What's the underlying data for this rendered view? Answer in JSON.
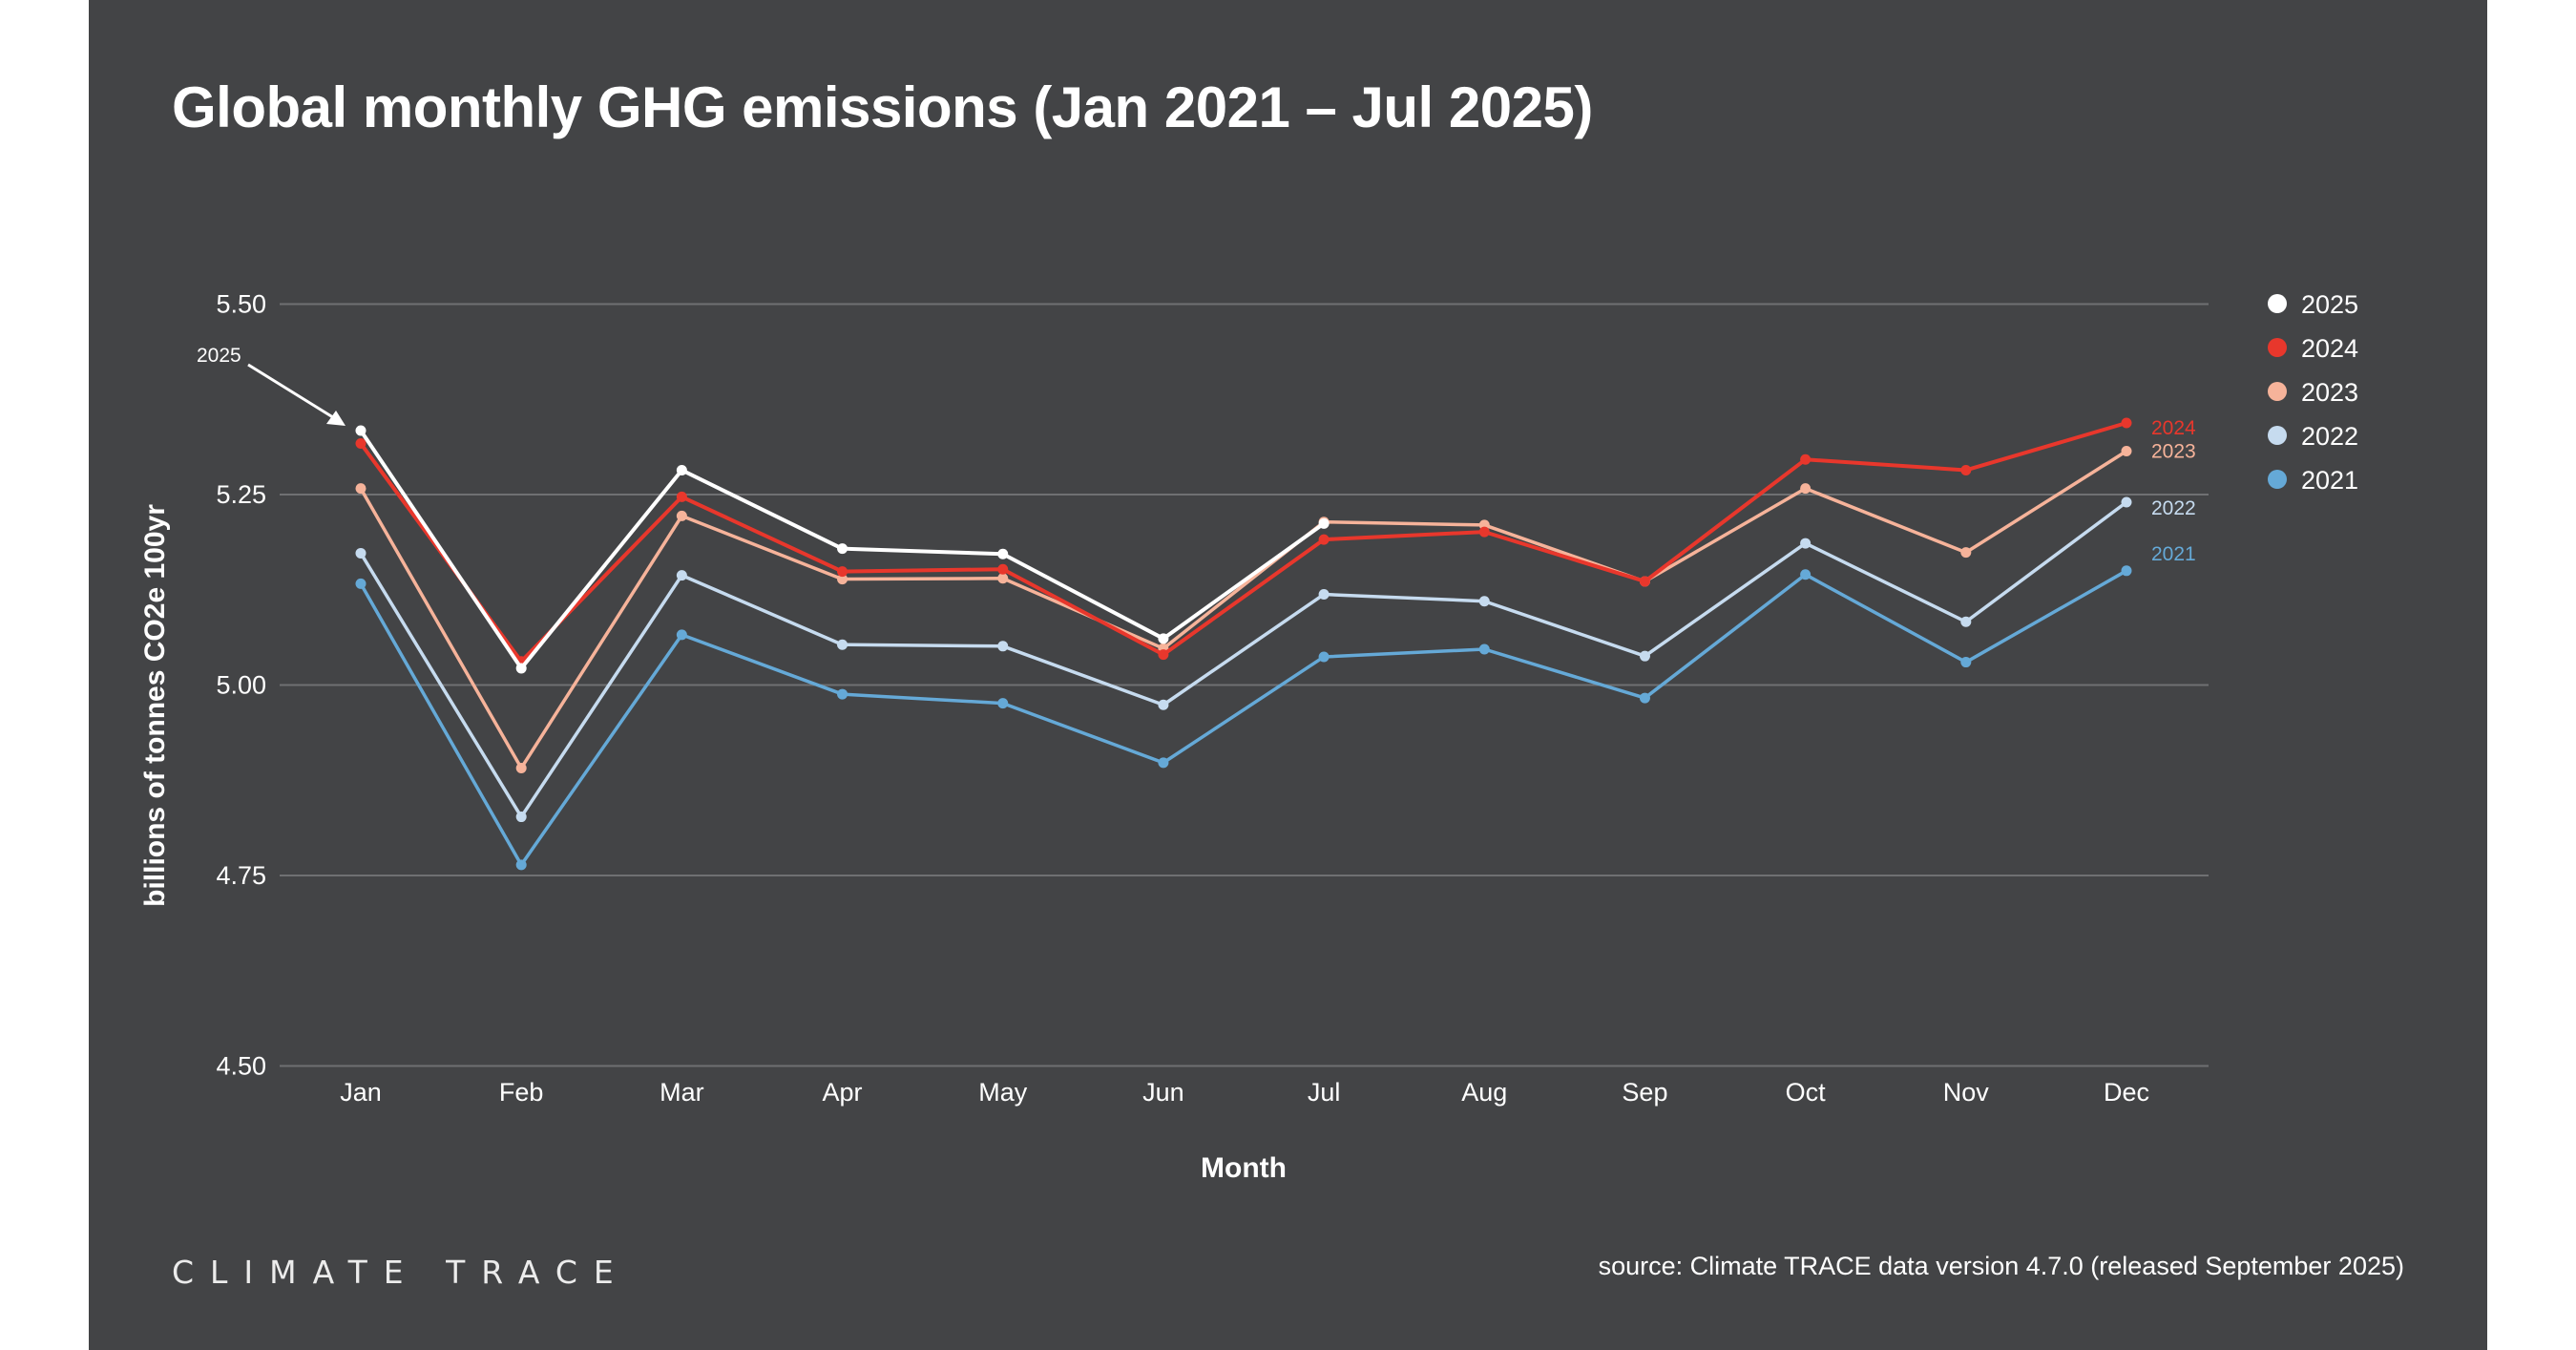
{
  "colors": {
    "background": "#434446",
    "gridline": "#6f7072",
    "text": "#ffffff"
  },
  "footer": {
    "logo": "CLIMATE TRACE",
    "source": "source: Climate TRACE data version 4.7.0 (released September 2025)"
  },
  "chart_data": {
    "type": "line",
    "title": "Global monthly GHG emissions (Jan 2021 – Jul 2025)",
    "xlabel": "Month",
    "ylabel": "billions of tonnes CO2e 100yr",
    "categories": [
      "Jan",
      "Feb",
      "Mar",
      "Apr",
      "May",
      "Jun",
      "Jul",
      "Aug",
      "Sep",
      "Oct",
      "Nov",
      "Dec"
    ],
    "ylim": [
      4.5,
      5.5
    ],
    "yticks": [
      4.5,
      4.75,
      5.0,
      5.25,
      5.5
    ],
    "ytick_labels": [
      "4.50",
      "4.75",
      "5.00",
      "5.25",
      "5.50"
    ],
    "grid": true,
    "legend_position": "right",
    "annotation": {
      "text": "2025",
      "target_series": "2025",
      "target_category": "Jan"
    },
    "series": [
      {
        "name": "2021",
        "color": "#65a9d7",
        "end_label": "2021",
        "values": [
          5.133,
          4.764,
          5.066,
          4.988,
          4.976,
          4.898,
          5.037,
          5.047,
          4.983,
          5.145,
          5.03,
          5.15
        ]
      },
      {
        "name": "2022",
        "color": "#c6dbef",
        "end_label": "2022",
        "values": [
          5.173,
          4.827,
          5.144,
          5.053,
          5.051,
          4.974,
          5.119,
          5.11,
          5.038,
          5.186,
          5.083,
          5.24
        ]
      },
      {
        "name": "2023",
        "color": "#f6b39a",
        "end_label": "2023",
        "values": [
          5.258,
          4.891,
          5.222,
          5.139,
          5.14,
          5.048,
          5.214,
          5.21,
          5.136,
          5.258,
          5.174,
          5.307
        ]
      },
      {
        "name": "2024",
        "color": "#e8372c",
        "end_label": "2024",
        "values": [
          5.317,
          5.031,
          5.247,
          5.149,
          5.152,
          5.04,
          5.191,
          5.201,
          5.136,
          5.296,
          5.282,
          5.344
        ]
      },
      {
        "name": "2025",
        "color": "#ffffff",
        "end_label": "",
        "values": [
          5.334,
          5.022,
          5.282,
          5.179,
          5.172,
          5.061,
          5.212,
          null,
          null,
          null,
          null,
          null
        ]
      }
    ],
    "legend": [
      {
        "label": "2025",
        "color": "#ffffff"
      },
      {
        "label": "2024",
        "color": "#e8372c"
      },
      {
        "label": "2023",
        "color": "#f6b39a"
      },
      {
        "label": "2022",
        "color": "#c6dbef"
      },
      {
        "label": "2021",
        "color": "#65a9d7"
      }
    ]
  }
}
